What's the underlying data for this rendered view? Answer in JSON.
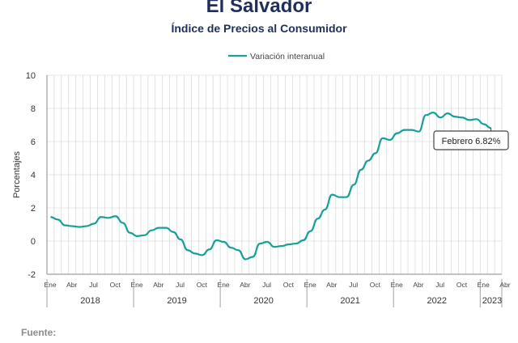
{
  "header": {
    "title": "El Salvador",
    "subtitle": "Índice de Precios al Consumidor"
  },
  "footer": {
    "source_label": "Fuente:"
  },
  "chart_data": {
    "type": "line",
    "title": "El Salvador",
    "subtitle": "Índice de Precios al Consumidor",
    "xlabel": "",
    "ylabel": "Porcentajes",
    "ylim": [
      -2,
      10
    ],
    "yticks": [
      -2,
      0,
      2,
      4,
      6,
      8,
      10
    ],
    "grid": true,
    "legend": "top-center",
    "colors": {
      "series": "#17a099",
      "axis": "#8a8a8a",
      "grid": "#cfcfcf"
    },
    "month_labels": [
      "Ene",
      "Abr",
      "Jul",
      "Oct"
    ],
    "month_label_positions": [
      0,
      3,
      6,
      9
    ],
    "years": [
      "2018",
      "2019",
      "2020",
      "2021",
      "2022",
      "2023"
    ],
    "annotation": {
      "text": "Febrero 6.82%",
      "x_index": 61,
      "value": 6.82
    },
    "series": [
      {
        "name": "Variación interanual",
        "values": [
          1.45,
          1.3,
          0.95,
          0.9,
          0.85,
          0.9,
          1.05,
          1.45,
          1.4,
          1.5,
          1.1,
          0.5,
          0.3,
          0.35,
          0.65,
          0.8,
          0.8,
          0.55,
          0.1,
          -0.55,
          -0.75,
          -0.85,
          -0.5,
          0.05,
          -0.05,
          -0.4,
          -0.55,
          -1.1,
          -0.95,
          -0.15,
          -0.05,
          -0.35,
          -0.3,
          -0.2,
          -0.15,
          0.05,
          0.6,
          1.35,
          1.9,
          2.8,
          2.65,
          2.65,
          3.4,
          4.3,
          4.85,
          5.3,
          6.2,
          6.1,
          6.5,
          6.7,
          6.7,
          6.6,
          7.6,
          7.75,
          7.45,
          7.7,
          7.5,
          7.45,
          7.3,
          7.35,
          7.05,
          6.82
        ]
      }
    ]
  }
}
